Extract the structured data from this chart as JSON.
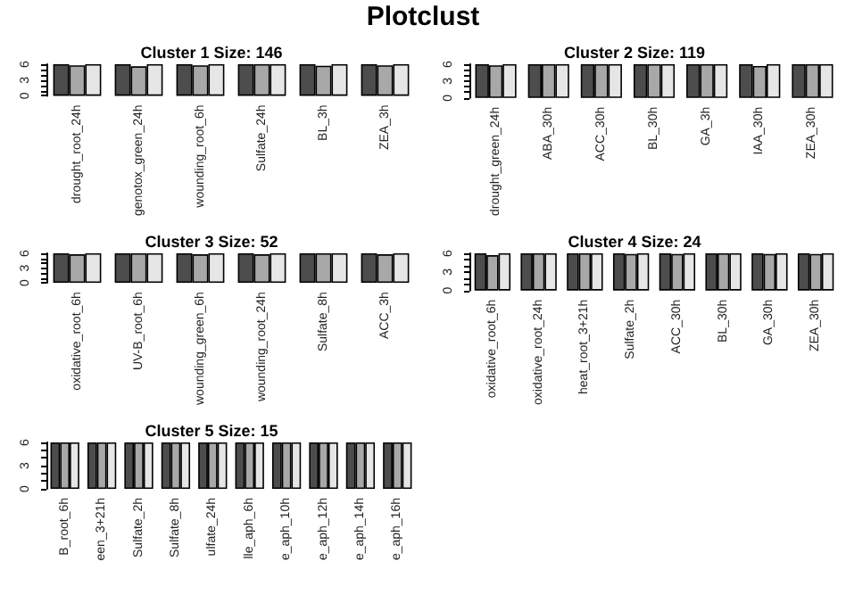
{
  "chart_data": [
    {
      "type": "bar",
      "title": "Cluster 1 Size: 146",
      "annotations": [
        "Plotclust"
      ],
      "categories": [
        "drought_root_24h",
        "genotox_green_24h",
        "wounding_root_6h",
        "Sulfate_24h",
        "BL_3h",
        "ZEA_3h"
      ],
      "ylim": [
        0,
        6
      ],
      "yticks": [
        0,
        {
          "value": 1,
          "label": null
        },
        {
          "value": 2,
          "label": null
        },
        3,
        {
          "value": 4,
          "label": null
        },
        {
          "value": 5,
          "label": null
        },
        6
      ],
      "series": [
        {
          "color": "#4d4d4d",
          "values": [
            6,
            6,
            6,
            6,
            6,
            6
          ]
        },
        {
          "color": "#a8a8a8",
          "values": [
            5.8,
            5.6,
            5.8,
            6,
            5.7,
            5.8
          ]
        },
        {
          "color": "#e6e6e6",
          "values": [
            6,
            6,
            6,
            6,
            6,
            6
          ]
        }
      ]
    },
    {
      "type": "bar",
      "title": "Cluster 2 Size: 119",
      "categories": [
        "drought_green_24h",
        "ABA_30h",
        "ACC_30h",
        "BL_30h",
        "GA_3h",
        "IAA_30h",
        "ZEA_30h"
      ],
      "ylim": [
        0,
        6
      ],
      "yticks": [
        0,
        {
          "value": 1,
          "label": null
        },
        {
          "value": 2,
          "label": null
        },
        3,
        {
          "value": 4,
          "label": null
        },
        {
          "value": 5,
          "label": null
        },
        6
      ],
      "series": [
        {
          "color": "#4d4d4d",
          "values": [
            6,
            6,
            6,
            6,
            6,
            6,
            6
          ]
        },
        {
          "color": "#a8a8a8",
          "values": [
            5.8,
            6,
            6,
            6,
            6,
            5.7,
            6
          ]
        },
        {
          "color": "#e6e6e6",
          "values": [
            6,
            6,
            6,
            6,
            6,
            6,
            6
          ]
        }
      ]
    },
    {
      "type": "bar",
      "title": "Cluster 3 Size: 52",
      "categories": [
        "oxidative_root_6h",
        "UV-B_root_6h",
        "wounding_green_6h",
        "wounding_root_24h",
        "Sulfate_8h",
        "ACC_3h"
      ],
      "ylim": [
        0,
        6
      ],
      "yticks": [
        0,
        {
          "value": 1,
          "label": null
        },
        {
          "value": 2,
          "label": null
        },
        3,
        {
          "value": 4,
          "label": null
        },
        {
          "value": 5,
          "label": null
        },
        6
      ],
      "series": [
        {
          "color": "#4d4d4d",
          "values": [
            6,
            6,
            6,
            6,
            6,
            6
          ]
        },
        {
          "color": "#a8a8a8",
          "values": [
            5.8,
            6,
            5.8,
            5.8,
            6,
            5.8
          ]
        },
        {
          "color": "#e6e6e6",
          "values": [
            6,
            6,
            6,
            6,
            6,
            6
          ]
        }
      ]
    },
    {
      "type": "bar",
      "title": "Cluster 4 Size: 24",
      "categories": [
        "oxidative_root_6h",
        "oxidative_root_24h",
        "heat_root_3+21h",
        "Sulfate_2h",
        "ACC_30h",
        "BL_30h",
        "GA_30h",
        "ZEA_30h"
      ],
      "ylim": [
        0,
        6
      ],
      "yticks": [
        0,
        {
          "value": 1,
          "label": null
        },
        {
          "value": 2,
          "label": null
        },
        3,
        {
          "value": 4,
          "label": null
        },
        {
          "value": 5,
          "label": null
        },
        6
      ],
      "series": [
        {
          "color": "#4d4d4d",
          "values": [
            6,
            6,
            6,
            6,
            6,
            6,
            6,
            6
          ]
        },
        {
          "color": "#a8a8a8",
          "values": [
            5.7,
            6,
            6,
            5.9,
            5.9,
            6,
            5.9,
            5.9
          ]
        },
        {
          "color": "#e6e6e6",
          "values": [
            6,
            6,
            6,
            6,
            6,
            6,
            6,
            6
          ]
        }
      ]
    },
    {
      "type": "bar",
      "title": "Cluster 5 Size: 15",
      "categories": [
        "B_root_6h",
        "een_3+21h",
        "Sulfate_2h",
        "Sulfate_8h",
        "ulfate_24h",
        "lle_aph_6h",
        "e_aph_10h",
        "e_aph_12h",
        "e_aph_14h",
        "e_aph_16h"
      ],
      "ylim": [
        0,
        6
      ],
      "yticks": [
        0,
        {
          "value": 1,
          "label": null
        },
        {
          "value": 2,
          "label": null
        },
        3,
        {
          "value": 4,
          "label": null
        },
        {
          "value": 5,
          "label": null
        },
        6
      ],
      "series": [
        {
          "color": "#4d4d4d",
          "values": [
            6,
            6,
            6,
            6,
            6,
            6,
            6,
            6,
            6,
            6
          ]
        },
        {
          "color": "#a8a8a8",
          "values": [
            6,
            6,
            6,
            6,
            6,
            6,
            6,
            6,
            6,
            6
          ]
        },
        {
          "color": "#e6e6e6",
          "values": [
            6,
            6,
            6,
            6,
            6,
            6,
            6,
            6,
            6,
            6
          ]
        }
      ]
    }
  ]
}
